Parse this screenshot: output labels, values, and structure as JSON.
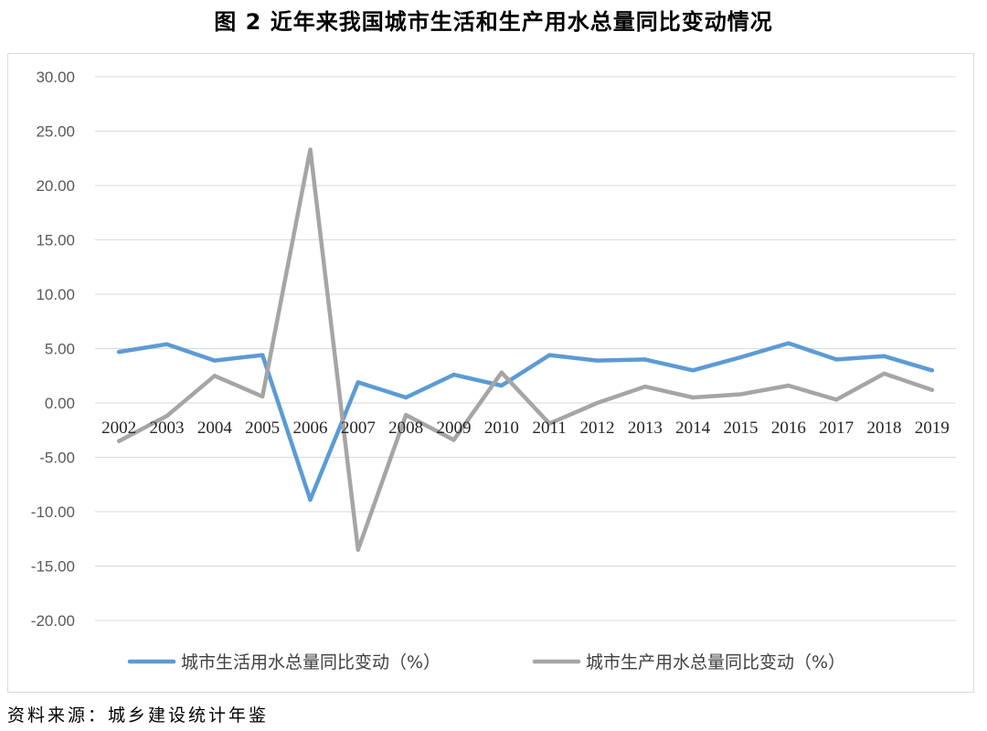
{
  "title": "图 2    近年来我国城市生活和生产用水总量同比变动情况",
  "source": "资料来源：城乡建设统计年鉴",
  "colors": {
    "series_0": "#5b9bd5",
    "series_1": "#a5a5a5",
    "grid": "#d9d9d9",
    "tick_text": "#595959"
  },
  "chart_data": {
    "type": "line",
    "title": "",
    "xlabel": "",
    "ylabel": "",
    "ylim": [
      -20,
      30
    ],
    "yticks": [
      30,
      25,
      20,
      15,
      10,
      5,
      0,
      -5,
      -10,
      -15,
      -20
    ],
    "ytick_labels": [
      "30.00",
      "25.00",
      "20.00",
      "15.00",
      "10.00",
      "5.00",
      "0.00",
      "-5.00",
      "-10.00",
      "-15.00",
      "-20.00"
    ],
    "grid": true,
    "legend": "bottom",
    "x": [
      "2002",
      "2003",
      "2004",
      "2005",
      "2006",
      "2007",
      "2008",
      "2009",
      "2010",
      "2011",
      "2012",
      "2013",
      "2014",
      "2015",
      "2016",
      "2017",
      "2018",
      "2019"
    ],
    "series": [
      {
        "name": "城市生活用水总量同比变动（%）",
        "values": [
          4.7,
          5.4,
          3.9,
          4.4,
          -8.9,
          1.9,
          0.5,
          2.6,
          1.6,
          4.4,
          3.9,
          4.0,
          3.0,
          4.2,
          5.5,
          4.0,
          4.3,
          3.0
        ]
      },
      {
        "name": "城市生产用水总量同比变动（%）",
        "values": [
          -3.5,
          -1.2,
          2.5,
          0.6,
          23.3,
          -13.5,
          -1.1,
          -3.4,
          2.8,
          -1.9,
          0.0,
          1.5,
          0.5,
          0.8,
          1.6,
          0.3,
          2.7,
          1.2
        ]
      }
    ]
  }
}
